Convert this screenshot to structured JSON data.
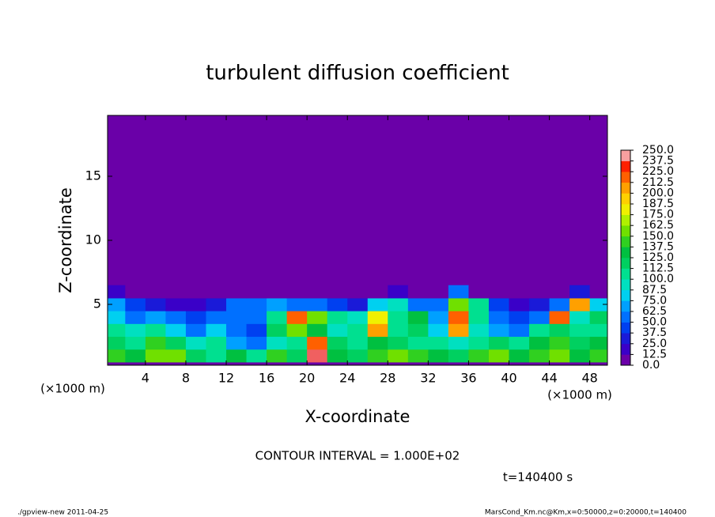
{
  "chart_data": {
    "type": "heatmap",
    "title": "turbulent diffusion coefficient",
    "x_label": "X-coordinate",
    "y_label": "Z-coordinate",
    "unit_label": "(×1000 m)",
    "annotation": "CONTOUR INTERVAL = 1.000E+02",
    "time_label": "t=140400 s",
    "footer_left": "./gpview-new  2011-04-25",
    "footer_right": "MarsCond_Km.nc@Km,x=0:50000,z=0:20000,t=140400",
    "xlim": [
      0.25,
      49.75
    ],
    "ylim": [
      0.25,
      19.75
    ],
    "xticks": [
      4,
      8,
      12,
      16,
      20,
      24,
      28,
      32,
      36,
      40,
      44,
      48
    ],
    "yticks": [
      5,
      10,
      15
    ],
    "x": [
      1,
      3,
      5,
      7,
      9,
      11,
      13,
      15,
      17,
      19,
      21,
      23,
      25,
      27,
      29,
      31,
      33,
      35,
      37,
      39,
      41,
      43,
      45,
      47,
      49
    ],
    "z": [
      1,
      2,
      3,
      4,
      5,
      6
    ],
    "values": [
      [
        140,
        130,
        160,
        150,
        120,
        100,
        130,
        110,
        140,
        120,
        250,
        130,
        120,
        140,
        150,
        140,
        130,
        120,
        140,
        150,
        130,
        140,
        150,
        130,
        140
      ],
      [
        120,
        110,
        140,
        120,
        90,
        100,
        70,
        60,
        90,
        110,
        220,
        120,
        100,
        130,
        120,
        110,
        100,
        90,
        110,
        120,
        100,
        130,
        140,
        120,
        130
      ],
      [
        100,
        90,
        110,
        80,
        60,
        80,
        50,
        40,
        120,
        160,
        130,
        90,
        110,
        200,
        100,
        120,
        80,
        200,
        90,
        70,
        60,
        110,
        120,
        100,
        110
      ],
      [
        80,
        60,
        70,
        50,
        40,
        60,
        60,
        50,
        110,
        220,
        150,
        100,
        90,
        180,
        110,
        130,
        70,
        220,
        100,
        60,
        40,
        60,
        220,
        90,
        120
      ],
      [
        70,
        40,
        30,
        20,
        20,
        30,
        60,
        50,
        70,
        60,
        50,
        40,
        30,
        80,
        90,
        60,
        50,
        150,
        100,
        40,
        20,
        30,
        50,
        210,
        80
      ],
      [
        20,
        0,
        0,
        0,
        0,
        0,
        10,
        0,
        0,
        0,
        0,
        0,
        0,
        10,
        20,
        0,
        0,
        60,
        10,
        0,
        0,
        0,
        0,
        30,
        10
      ]
    ],
    "levels": [
      {
        "value": 0,
        "label": "0.0"
      },
      12.5,
      {
        "value": 25,
        "label": "25.0"
      },
      37.5,
      {
        "value": 50,
        "label": "50.0"
      },
      62.5,
      {
        "value": 75,
        "label": "75.0"
      },
      87.5,
      {
        "value": 100,
        "label": "100.0"
      },
      112.5,
      {
        "value": 125,
        "label": "125.0"
      },
      137.5,
      {
        "value": 150,
        "label": "150.0"
      },
      162.5,
      {
        "value": 175,
        "label": "175.0"
      },
      187.5,
      {
        "value": 200,
        "label": "200.0"
      },
      212.5,
      {
        "value": 225,
        "label": "225.0"
      },
      237.5,
      {
        "value": 250,
        "label": "250.0"
      }
    ],
    "colors": [
      "#6a00a8",
      "#3a00c8",
      "#1a1ad8",
      "#0040f0",
      "#0070ff",
      "#00a0ff",
      "#00d0f0",
      "#00e0c0",
      "#00e090",
      "#00d060",
      "#00c040",
      "#30d020",
      "#70e000",
      "#b0f000",
      "#f0f000",
      "#ffd000",
      "#ffa000",
      "#ff6000",
      "#ff2000",
      "#f06060"
    ],
    "top_color": "#f8a0a0"
  }
}
